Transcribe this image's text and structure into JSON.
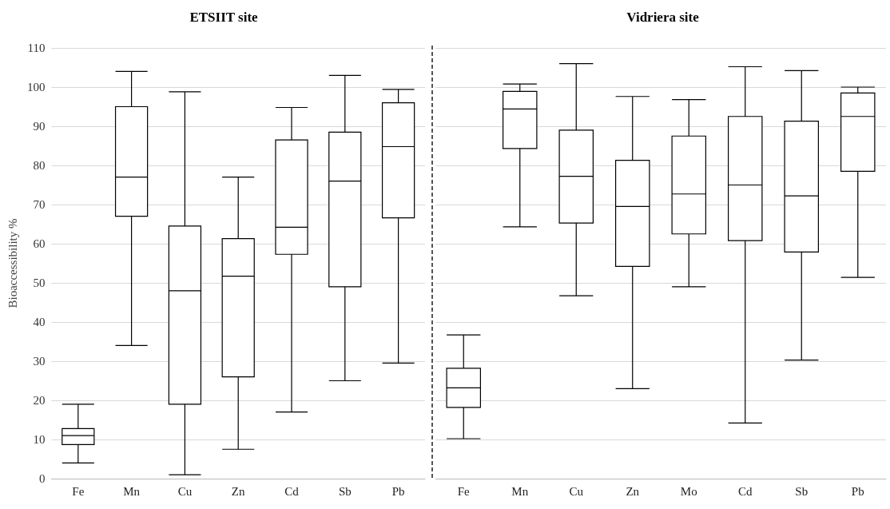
{
  "chart_data": [
    {
      "type": "box",
      "title": "ETSIIT site",
      "ylabel": "Bioaccessibility %",
      "categories": [
        "Fe",
        "Mn",
        "Cu",
        "Zn",
        "Cd",
        "Sb",
        "Pb"
      ],
      "ylim": [
        0,
        110
      ],
      "yticks": [
        0,
        10,
        20,
        30,
        40,
        50,
        60,
        70,
        80,
        90,
        100,
        110
      ],
      "grid": "y",
      "series": [
        {
          "color": "#000000",
          "boxes": [
            {
              "low": 4,
              "q1": 8.7,
              "median": 11,
              "q3": 12.8,
              "high": 19
            },
            {
              "low": 34,
              "q1": 67,
              "median": 77,
              "q3": 95,
              "high": 104
            },
            {
              "low": 1,
              "q1": 19,
              "median": 48,
              "q3": 64.5,
              "high": 98.8
            },
            {
              "low": 7.5,
              "q1": 26,
              "median": 51.7,
              "q3": 61.3,
              "high": 77
            },
            {
              "low": 17,
              "q1": 57.3,
              "median": 64.2,
              "q3": 86.5,
              "high": 94.8
            },
            {
              "low": 25,
              "q1": 49,
              "median": 76,
              "q3": 88.5,
              "high": 103
            },
            {
              "low": 29.5,
              "q1": 66.6,
              "median": 84.8,
              "q3": 96,
              "high": 99.4
            }
          ]
        }
      ]
    },
    {
      "type": "box",
      "title": "Vidriera site",
      "categories": [
        "Fe",
        "Mn",
        "Cu",
        "Zn",
        "Mo",
        "Cd",
        "Sb",
        "Pb"
      ],
      "ylim": [
        0,
        110
      ],
      "yticks": [
        0,
        10,
        20,
        30,
        40,
        50,
        60,
        70,
        80,
        90,
        100,
        110
      ],
      "grid": "y",
      "tick_labels": "x",
      "series": [
        {
          "color": "#000000",
          "boxes": [
            {
              "low": 10.2,
              "q1": 18.2,
              "median": 23.2,
              "q3": 28.2,
              "high": 36.7
            },
            {
              "low": 64.3,
              "q1": 84.3,
              "median": 94.4,
              "q3": 98.9,
              "high": 100.8
            },
            {
              "low": 46.7,
              "q1": 65.3,
              "median": 77.2,
              "q3": 89,
              "high": 106
            },
            {
              "low": 23,
              "q1": 54.2,
              "median": 69.5,
              "q3": 81.3,
              "high": 97.6
            },
            {
              "low": 49,
              "q1": 62.5,
              "median": 72.7,
              "q3": 87.5,
              "high": 96.8
            },
            {
              "low": 14.2,
              "q1": 60.8,
              "median": 75,
              "q3": 92.5,
              "high": 105.2
            },
            {
              "low": 30.3,
              "q1": 57.9,
              "median": 72.2,
              "q3": 91.3,
              "high": 104.2
            },
            {
              "low": 51.4,
              "q1": 78.5,
              "median": 92.5,
              "q3": 98.5,
              "high": 100
            }
          ]
        }
      ]
    }
  ]
}
